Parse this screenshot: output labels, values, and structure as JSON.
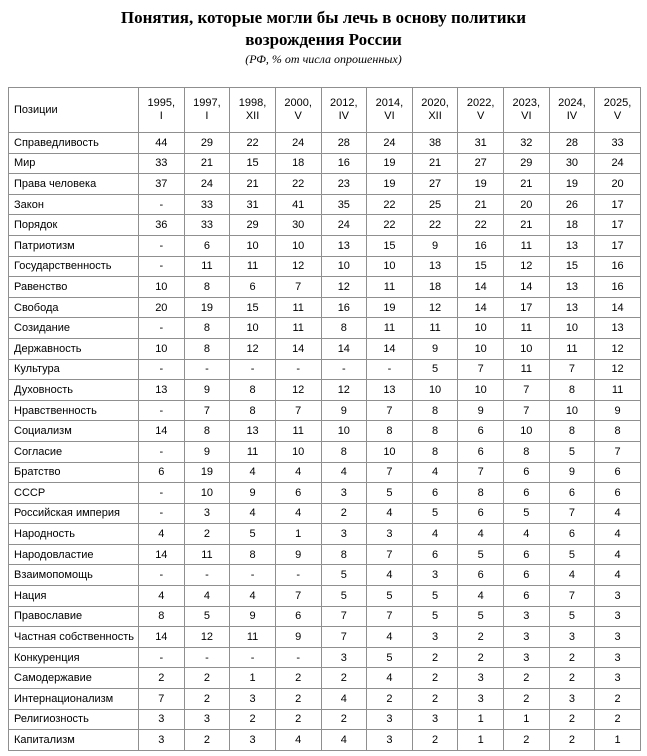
{
  "title": {
    "line1": "Понятия, которые могли бы лечь в основу политики",
    "line2": "возрождения России",
    "subtitle": "(РФ, % от числа опрошенных)"
  },
  "table": {
    "header_label": "Позиции",
    "columns": [
      {
        "year": "1995,",
        "wave": "I"
      },
      {
        "year": "1997,",
        "wave": "I"
      },
      {
        "year": "1998,",
        "wave": "XII"
      },
      {
        "year": "2000,",
        "wave": "V"
      },
      {
        "year": "2012,",
        "wave": "IV"
      },
      {
        "year": "2014,",
        "wave": "VI"
      },
      {
        "year": "2020,",
        "wave": "XII"
      },
      {
        "year": "2022,",
        "wave": "V"
      },
      {
        "year": "2023,",
        "wave": "VI"
      },
      {
        "year": "2024,",
        "wave": "IV"
      },
      {
        "year": "2025,",
        "wave": "V"
      }
    ],
    "rows": [
      {
        "label": "Справедливость",
        "values": [
          "44",
          "29",
          "22",
          "24",
          "28",
          "24",
          "38",
          "31",
          "32",
          "28",
          "33"
        ]
      },
      {
        "label": "Мир",
        "values": [
          "33",
          "21",
          "15",
          "18",
          "16",
          "19",
          "21",
          "27",
          "29",
          "30",
          "24"
        ]
      },
      {
        "label": "Права человека",
        "values": [
          "37",
          "24",
          "21",
          "22",
          "23",
          "19",
          "27",
          "19",
          "21",
          "19",
          "20"
        ]
      },
      {
        "label": "Закон",
        "values": [
          "-",
          "33",
          "31",
          "41",
          "35",
          "22",
          "25",
          "21",
          "20",
          "26",
          "17"
        ]
      },
      {
        "label": "Порядок",
        "values": [
          "36",
          "33",
          "29",
          "30",
          "24",
          "22",
          "22",
          "22",
          "21",
          "18",
          "17"
        ]
      },
      {
        "label": "Патриотизм",
        "values": [
          "-",
          "6",
          "10",
          "10",
          "13",
          "15",
          "9",
          "16",
          "11",
          "13",
          "17"
        ]
      },
      {
        "label": "Государственность",
        "values": [
          "-",
          "11",
          "11",
          "12",
          "10",
          "10",
          "13",
          "15",
          "12",
          "15",
          "16"
        ]
      },
      {
        "label": "Равенство",
        "values": [
          "10",
          "8",
          "6",
          "7",
          "12",
          "11",
          "18",
          "14",
          "14",
          "13",
          "16"
        ]
      },
      {
        "label": "Свобода",
        "values": [
          "20",
          "19",
          "15",
          "11",
          "16",
          "19",
          "12",
          "14",
          "17",
          "13",
          "14"
        ]
      },
      {
        "label": "Созидание",
        "values": [
          "-",
          "8",
          "10",
          "11",
          "8",
          "11",
          "11",
          "10",
          "11",
          "10",
          "13"
        ]
      },
      {
        "label": "Державность",
        "values": [
          "10",
          "8",
          "12",
          "14",
          "14",
          "14",
          "9",
          "10",
          "10",
          "11",
          "12"
        ]
      },
      {
        "label": "Культура",
        "values": [
          "-",
          "-",
          "-",
          "-",
          "-",
          "-",
          "5",
          "7",
          "11",
          "7",
          "12"
        ]
      },
      {
        "label": "Духовность",
        "values": [
          "13",
          "9",
          "8",
          "12",
          "12",
          "13",
          "10",
          "10",
          "7",
          "8",
          "11"
        ]
      },
      {
        "label": "Нравственность",
        "values": [
          "-",
          "7",
          "8",
          "7",
          "9",
          "7",
          "8",
          "9",
          "7",
          "10",
          "9"
        ]
      },
      {
        "label": "Социализм",
        "values": [
          "14",
          "8",
          "13",
          "11",
          "10",
          "8",
          "8",
          "6",
          "10",
          "8",
          "8"
        ]
      },
      {
        "label": "Согласие",
        "values": [
          "-",
          "9",
          "11",
          "10",
          "8",
          "10",
          "8",
          "6",
          "8",
          "5",
          "7"
        ]
      },
      {
        "label": "Братство",
        "values": [
          "6",
          "19",
          "4",
          "4",
          "4",
          "7",
          "4",
          "7",
          "6",
          "9",
          "6"
        ]
      },
      {
        "label": "СССР",
        "values": [
          "-",
          "10",
          "9",
          "6",
          "3",
          "5",
          "6",
          "8",
          "6",
          "6",
          "6"
        ]
      },
      {
        "label": "Российская империя",
        "values": [
          "-",
          "3",
          "4",
          "4",
          "2",
          "4",
          "5",
          "6",
          "5",
          "7",
          "4"
        ]
      },
      {
        "label": "Народность",
        "values": [
          "4",
          "2",
          "5",
          "1",
          "3",
          "3",
          "4",
          "4",
          "4",
          "6",
          "4"
        ]
      },
      {
        "label": "Народовластие",
        "values": [
          "14",
          "11",
          "8",
          "9",
          "8",
          "7",
          "6",
          "5",
          "6",
          "5",
          "4"
        ]
      },
      {
        "label": "Взаимопомощь",
        "values": [
          "-",
          "-",
          "-",
          "-",
          "5",
          "4",
          "3",
          "6",
          "6",
          "4",
          "4"
        ]
      },
      {
        "label": "Нация",
        "values": [
          "4",
          "4",
          "4",
          "7",
          "5",
          "5",
          "5",
          "4",
          "6",
          "7",
          "3"
        ]
      },
      {
        "label": "Православие",
        "values": [
          "8",
          "5",
          "9",
          "6",
          "7",
          "7",
          "5",
          "5",
          "3",
          "5",
          "3"
        ]
      },
      {
        "label": "Частная собственность",
        "values": [
          "14",
          "12",
          "11",
          "9",
          "7",
          "4",
          "3",
          "2",
          "3",
          "3",
          "3"
        ]
      },
      {
        "label": "Конкуренция",
        "values": [
          "-",
          "-",
          "-",
          "-",
          "3",
          "5",
          "2",
          "2",
          "3",
          "2",
          "3"
        ]
      },
      {
        "label": "Самодержавие",
        "values": [
          "2",
          "2",
          "1",
          "2",
          "2",
          "4",
          "2",
          "3",
          "2",
          "2",
          "3"
        ]
      },
      {
        "label": "Интернационализм",
        "values": [
          "7",
          "2",
          "3",
          "2",
          "4",
          "2",
          "2",
          "3",
          "2",
          "3",
          "2"
        ]
      },
      {
        "label": "Религиозность",
        "values": [
          "3",
          "3",
          "2",
          "2",
          "2",
          "3",
          "3",
          "1",
          "1",
          "2",
          "2"
        ]
      },
      {
        "label": "Капитализм",
        "values": [
          "3",
          "2",
          "3",
          "4",
          "4",
          "3",
          "2",
          "1",
          "2",
          "2",
          "1"
        ]
      }
    ]
  }
}
